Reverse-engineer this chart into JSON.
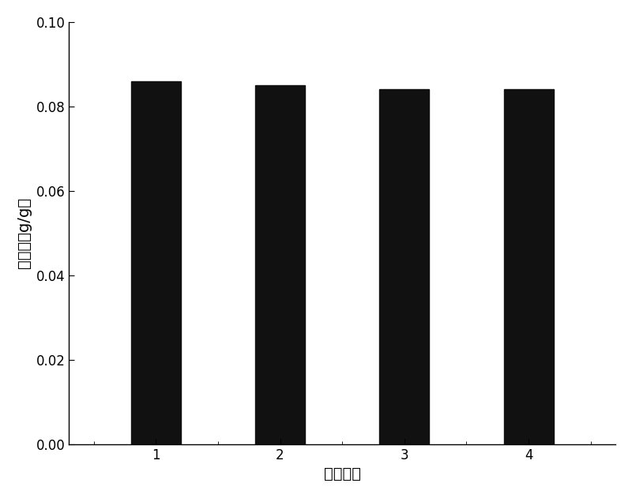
{
  "categories": [
    "1",
    "2",
    "3",
    "4"
  ],
  "values": [
    0.086,
    0.085,
    0.084,
    0.084
  ],
  "bar_color": "#111111",
  "bar_width": 0.4,
  "xlabel": "实验次数",
  "ylabel": "吸附量（g/g）",
  "ylim": [
    0.0,
    0.1
  ],
  "yticks": [
    0.0,
    0.02,
    0.04,
    0.06,
    0.08,
    0.1
  ],
  "xlabel_fontsize": 14,
  "ylabel_fontsize": 14,
  "tick_fontsize": 12,
  "background_color": "#ffffff",
  "figure_width": 8.0,
  "figure_height": 6.31
}
